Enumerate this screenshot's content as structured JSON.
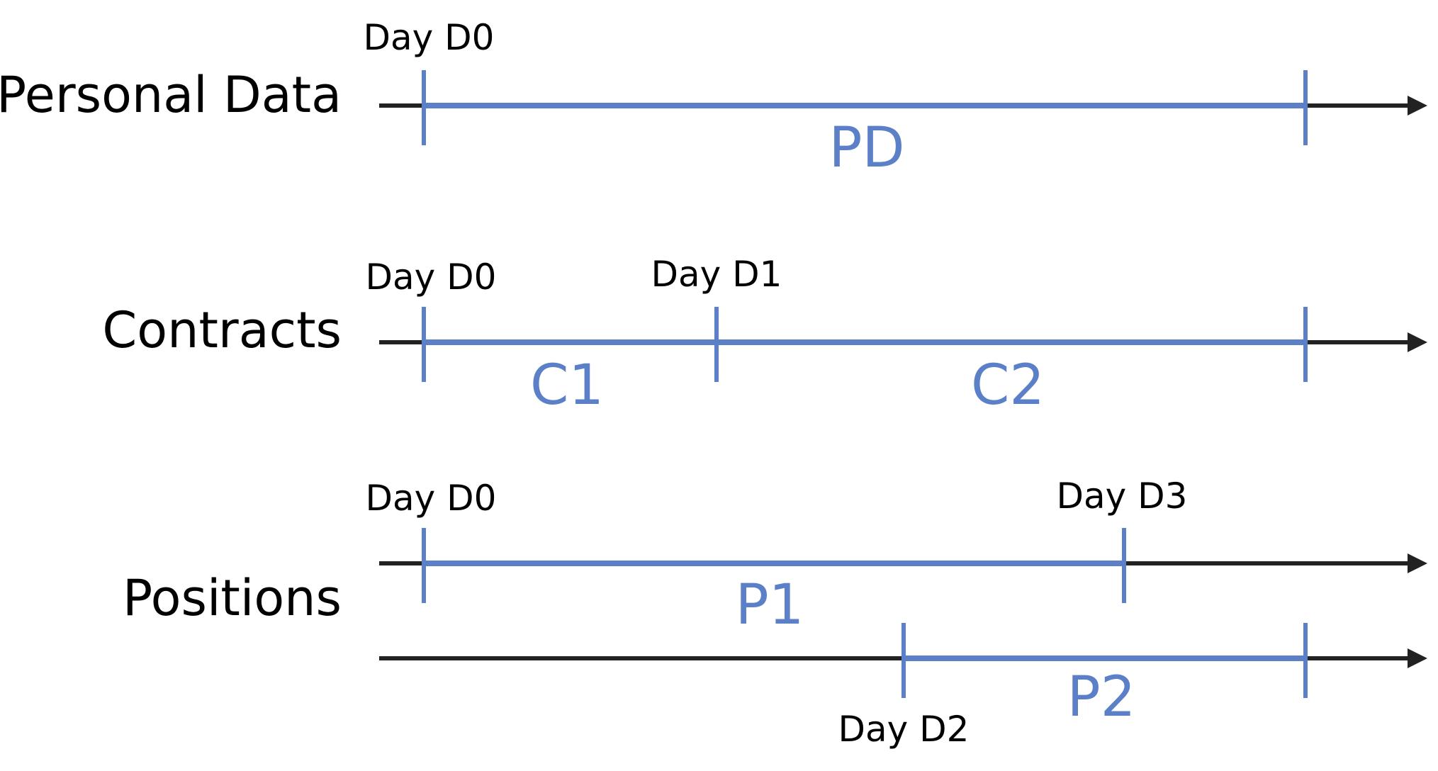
{
  "colors": {
    "segment": "#5b80c8",
    "axis": "#222222",
    "text": "#000000"
  },
  "rows": [
    {
      "label": "Personal Data",
      "segments": [
        {
          "label": "PD",
          "start_label": "Day D0",
          "end_label": ""
        }
      ]
    },
    {
      "label": "Contracts",
      "segments": [
        {
          "label": "C1",
          "start_label": "Day D0",
          "end_label": "Day D1"
        },
        {
          "label": "C2",
          "start_label": "",
          "end_label": ""
        }
      ]
    },
    {
      "label": "Positions",
      "segments": [
        {
          "label": "P1",
          "start_label": "Day D0",
          "end_label": "Day D3"
        },
        {
          "label": "P2",
          "start_label": "Day D2",
          "end_label": ""
        }
      ]
    }
  ]
}
